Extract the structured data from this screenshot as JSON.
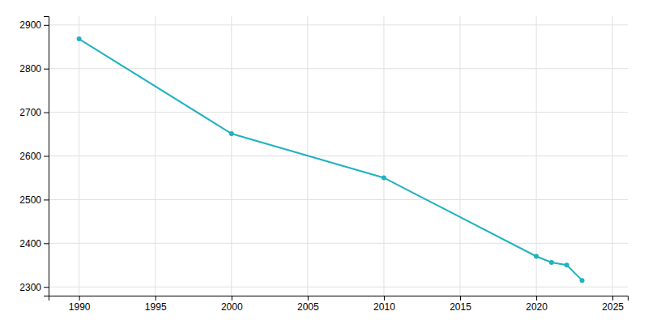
{
  "chart_data": {
    "type": "line",
    "x": [
      1990,
      2000,
      2010,
      2020,
      2021,
      2022,
      2023
    ],
    "values": [
      2868,
      2651,
      2550,
      2370,
      2356,
      2350,
      2315
    ],
    "color": "#20b2c0",
    "marker": "circle",
    "xlim": [
      1988,
      2026
    ],
    "ylim": [
      2280,
      2920
    ],
    "xticks": [
      1990,
      1995,
      2000,
      2005,
      2010,
      2015,
      2020,
      2025
    ],
    "yticks": [
      2300,
      2400,
      2500,
      2600,
      2700,
      2800,
      2900
    ],
    "grid": true
  }
}
